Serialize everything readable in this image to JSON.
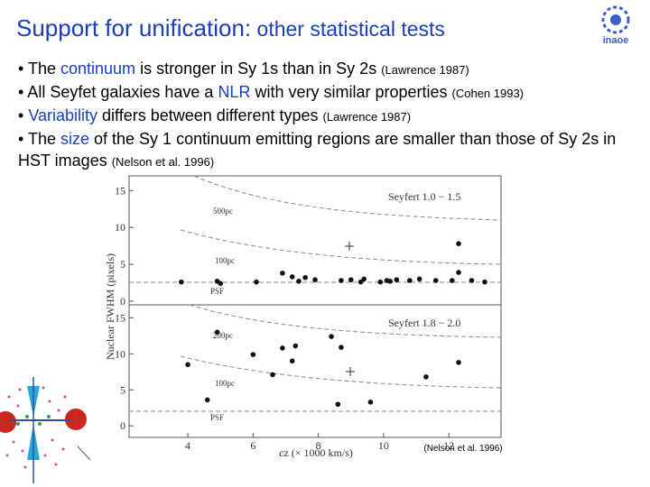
{
  "title": {
    "main": "Support for unification:",
    "rest": " other statistical tests"
  },
  "logo": {
    "text": "inaoe"
  },
  "bullets": [
    [
      "• The ",
      "continuum",
      " is stronger in Sy 1s than in Sy 2s ",
      "(Lawrence 1987)"
    ],
    [
      "• All Seyfet galaxies have a ",
      "NLR",
      " with very similar properties ",
      "(Cohen 1993)"
    ],
    [
      "• ",
      "Variability",
      " differs between different types ",
      "(Lawrence 1987)"
    ],
    [
      "• The ",
      "size",
      " of the Sy 1 continuum emitting regions are smaller than those of Sy 2s in HST images ",
      "(Nelson et al. 1996)"
    ]
  ],
  "figure": {
    "y_label": "Nuclear FWHM (pixels)",
    "x_label": "cz (× 1000 km/s)",
    "caption": "(Nelson et al. 1996)",
    "xlim": [
      2.2,
      13.6
    ],
    "xticks": [
      4,
      6,
      8,
      10,
      12
    ],
    "panels": [
      {
        "type": "scatter",
        "label": "Seyfert 1.0 − 1.5",
        "curve_labels": [
          "500pc",
          "100pc",
          "PSF"
        ],
        "ylim": [
          -0.5,
          17
        ],
        "yticks": [
          0,
          5,
          10,
          15
        ],
        "x": [
          3.8,
          4.9,
          5.0,
          6.1,
          6.9,
          7.2,
          7.4,
          7.6,
          7.9,
          8.7,
          9.0,
          9.3,
          9.4,
          9.9,
          10.1,
          10.2,
          10.4,
          10.8,
          11.1,
          11.6,
          12.1,
          12.3,
          12.3,
          12.7,
          13.1
        ],
        "y": [
          2.6,
          2.7,
          2.4,
          2.6,
          3.8,
          3.3,
          2.7,
          3.2,
          2.9,
          2.8,
          2.9,
          2.6,
          3.0,
          2.6,
          2.8,
          2.7,
          2.9,
          2.8,
          3.0,
          2.8,
          2.8,
          7.8,
          3.9,
          2.8,
          2.6
        ]
      },
      {
        "type": "scatter",
        "label": "Seyfert 1.8 − 2.0",
        "curve_labels": [
          "200pc",
          "100pc",
          "PSF"
        ],
        "ylim": [
          -1.6,
          16.8
        ],
        "yticks": [
          0,
          5,
          10,
          15
        ],
        "x": [
          4.0,
          4.6,
          4.9,
          6.0,
          6.6,
          6.9,
          7.2,
          7.3,
          8.4,
          8.6,
          8.7,
          9.6,
          11.3,
          12.3
        ],
        "y": [
          8.5,
          3.6,
          13.0,
          9.9,
          7.1,
          10.8,
          9.0,
          11.1,
          12.4,
          3.0,
          10.9,
          3.3,
          6.8,
          8.8
        ]
      }
    ]
  }
}
